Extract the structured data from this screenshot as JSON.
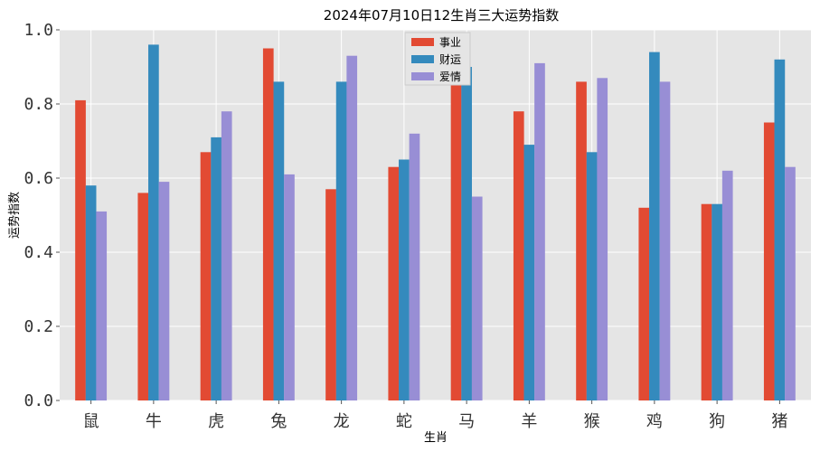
{
  "chart_data": {
    "type": "bar",
    "title": "2024年07月10日12生肖三大运势指数",
    "xlabel": "生肖",
    "ylabel": "运势指数",
    "ylim": [
      0,
      1.0
    ],
    "yticks": [
      "0.0",
      "0.2",
      "0.4",
      "0.6",
      "0.8",
      "1.0"
    ],
    "grid": true,
    "legend_position": "top-center",
    "categories": [
      "鼠",
      "牛",
      "虎",
      "兔",
      "龙",
      "蛇",
      "马",
      "羊",
      "猴",
      "鸡",
      "狗",
      "猪"
    ],
    "series": [
      {
        "name": "事业",
        "color": "#e24a33",
        "values": [
          0.81,
          0.56,
          0.67,
          0.95,
          0.57,
          0.63,
          0.88,
          0.78,
          0.86,
          0.52,
          0.53,
          0.75
        ]
      },
      {
        "name": "财运",
        "color": "#348abd",
        "values": [
          0.58,
          0.96,
          0.71,
          0.86,
          0.86,
          0.65,
          0.9,
          0.69,
          0.67,
          0.94,
          0.53,
          0.92
        ]
      },
      {
        "name": "爱情",
        "color": "#988ed5",
        "values": [
          0.51,
          0.59,
          0.78,
          0.61,
          0.93,
          0.72,
          0.55,
          0.91,
          0.87,
          0.86,
          0.62,
          0.63
        ]
      }
    ]
  }
}
